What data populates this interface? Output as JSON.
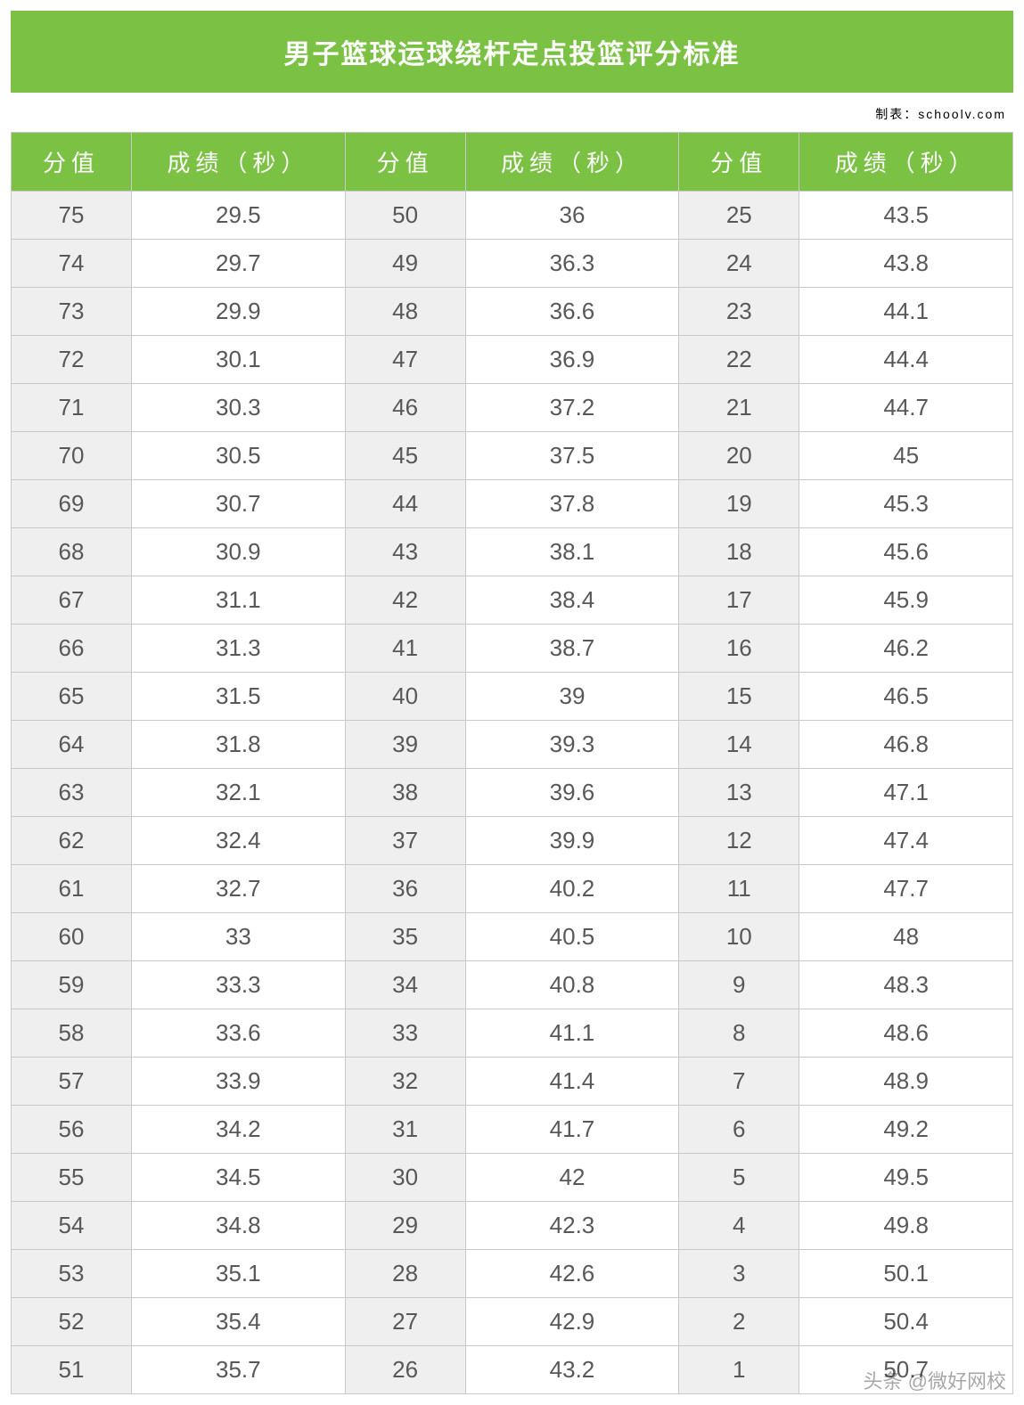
{
  "title": "男子篮球运球绕杆定点投篮评分标准",
  "credit": "制表：schoolv.com",
  "watermark": "头条 @微好网校",
  "colors": {
    "header_bg": "#7bc144",
    "header_text": "#ffffff",
    "score_col_bg": "#efefef",
    "cell_text": "#585858",
    "border": "#c9c9c9",
    "title_fontsize": 30,
    "header_fontsize": 26,
    "cell_fontsize": 26
  },
  "headers": {
    "score": "分值",
    "time": "成绩（秒）"
  },
  "table": {
    "type": "table",
    "columns": [
      "分值",
      "成绩（秒）",
      "分值",
      "成绩（秒）",
      "分值",
      "成绩（秒）"
    ],
    "rows": [
      [
        "75",
        "29.5",
        "50",
        "36",
        "25",
        "43.5"
      ],
      [
        "74",
        "29.7",
        "49",
        "36.3",
        "24",
        "43.8"
      ],
      [
        "73",
        "29.9",
        "48",
        "36.6",
        "23",
        "44.1"
      ],
      [
        "72",
        "30.1",
        "47",
        "36.9",
        "22",
        "44.4"
      ],
      [
        "71",
        "30.3",
        "46",
        "37.2",
        "21",
        "44.7"
      ],
      [
        "70",
        "30.5",
        "45",
        "37.5",
        "20",
        "45"
      ],
      [
        "69",
        "30.7",
        "44",
        "37.8",
        "19",
        "45.3"
      ],
      [
        "68",
        "30.9",
        "43",
        "38.1",
        "18",
        "45.6"
      ],
      [
        "67",
        "31.1",
        "42",
        "38.4",
        "17",
        "45.9"
      ],
      [
        "66",
        "31.3",
        "41",
        "38.7",
        "16",
        "46.2"
      ],
      [
        "65",
        "31.5",
        "40",
        "39",
        "15",
        "46.5"
      ],
      [
        "64",
        "31.8",
        "39",
        "39.3",
        "14",
        "46.8"
      ],
      [
        "63",
        "32.1",
        "38",
        "39.6",
        "13",
        "47.1"
      ],
      [
        "62",
        "32.4",
        "37",
        "39.9",
        "12",
        "47.4"
      ],
      [
        "61",
        "32.7",
        "36",
        "40.2",
        "11",
        "47.7"
      ],
      [
        "60",
        "33",
        "35",
        "40.5",
        "10",
        "48"
      ],
      [
        "59",
        "33.3",
        "34",
        "40.8",
        "9",
        "48.3"
      ],
      [
        "58",
        "33.6",
        "33",
        "41.1",
        "8",
        "48.6"
      ],
      [
        "57",
        "33.9",
        "32",
        "41.4",
        "7",
        "48.9"
      ],
      [
        "56",
        "34.2",
        "31",
        "41.7",
        "6",
        "49.2"
      ],
      [
        "55",
        "34.5",
        "30",
        "42",
        "5",
        "49.5"
      ],
      [
        "54",
        "34.8",
        "29",
        "42.3",
        "4",
        "49.8"
      ],
      [
        "53",
        "35.1",
        "28",
        "42.6",
        "3",
        "50.1"
      ],
      [
        "52",
        "35.4",
        "27",
        "42.9",
        "2",
        "50.4"
      ],
      [
        "51",
        "35.7",
        "26",
        "43.2",
        "1",
        "50.7"
      ]
    ]
  }
}
